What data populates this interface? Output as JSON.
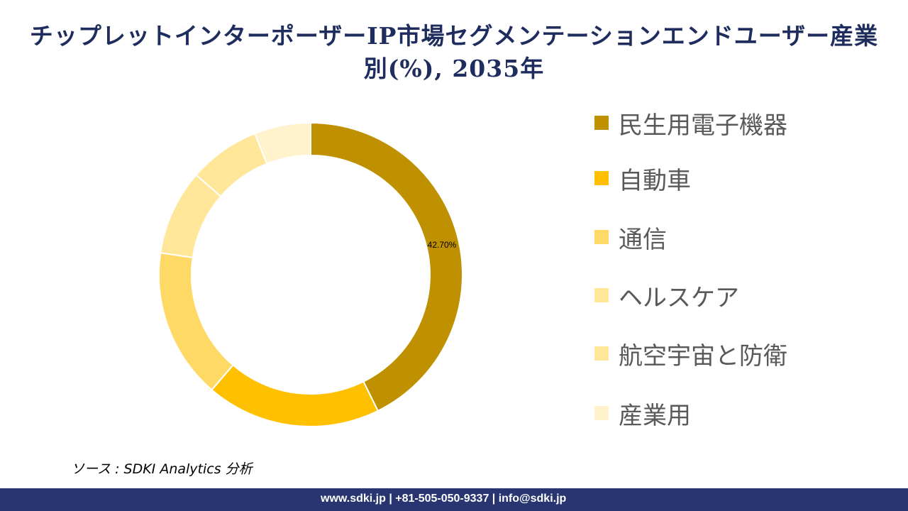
{
  "chart_data": {
    "type": "pie",
    "title": "チップレットインターポーザーIP市場セグメンテーションエンドユーザー産業別(%), 2035年",
    "categories": [
      "民生用電子機器",
      "自動車",
      "通信",
      "ヘルスケア",
      "航空宇宙と防衛",
      "産業用"
    ],
    "values": [
      42.7,
      18.6,
      16.0,
      9.1,
      7.6,
      6.0
    ],
    "colors": [
      "#BF9000",
      "#FFC000",
      "#FFD966",
      "#FFE699",
      "#FFE699",
      "#FFF2CC"
    ],
    "data_labels": [
      "42.70%",
      "",
      "",
      "",
      "",
      ""
    ],
    "donut": true,
    "legend_position": "right"
  },
  "source": "ソース : SDKI Analytics 分析",
  "footer": "www.sdki.jp | +81-505-050-9337 | info@sdki.jp"
}
